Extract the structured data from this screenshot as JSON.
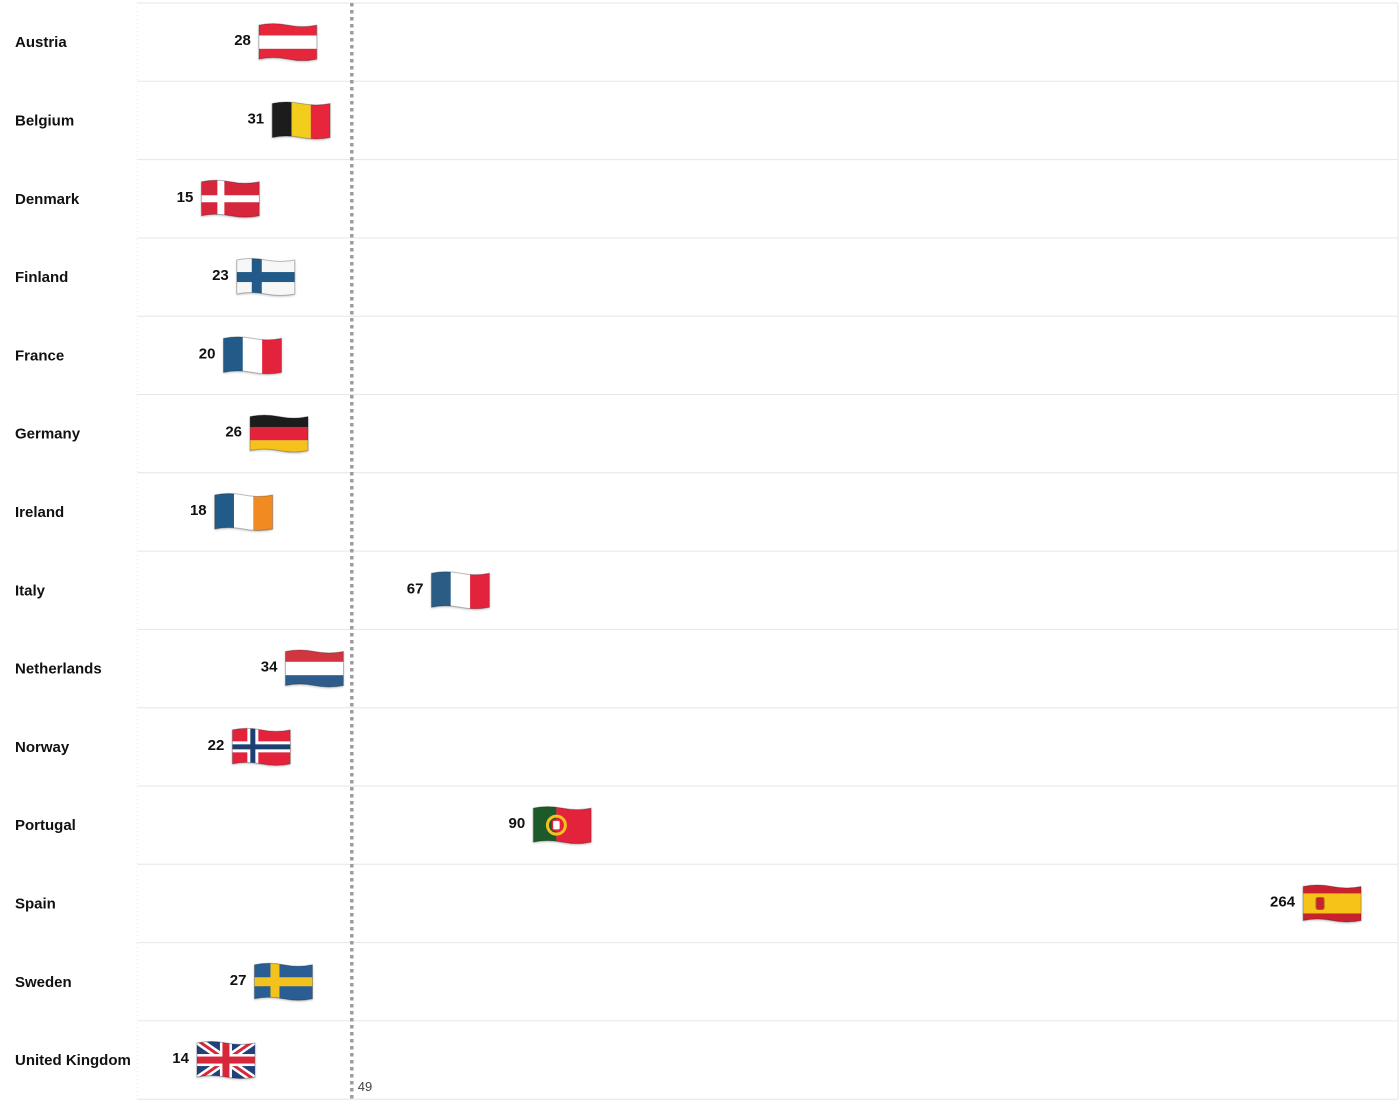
{
  "chart_data": {
    "type": "scatter",
    "categories": [
      "Austria",
      "Belgium",
      "Denmark",
      "Finland",
      "France",
      "Germany",
      "Ireland",
      "Italy",
      "Netherlands",
      "Norway",
      "Portugal",
      "Spain",
      "Sweden",
      "United Kingdom"
    ],
    "values": [
      28,
      31,
      15,
      23,
      20,
      26,
      18,
      67,
      34,
      22,
      90,
      264,
      27,
      14
    ],
    "markers": [
      "austria-flag-icon",
      "belgium-flag-icon",
      "denmark-flag-icon",
      "finland-flag-icon",
      "france-flag-icon",
      "germany-flag-icon",
      "ireland-flag-icon",
      "italy-flag-icon",
      "netherlands-flag-icon",
      "norway-flag-icon",
      "portugal-flag-icon",
      "spain-flag-icon",
      "sweden-flag-icon",
      "united-kingdom-flag-icon"
    ],
    "reference_line": {
      "value": 49,
      "label": "49"
    },
    "title": "",
    "xlabel": "",
    "ylabel": "",
    "xlim": [
      0,
      285
    ],
    "grid": true,
    "legend": "none"
  }
}
